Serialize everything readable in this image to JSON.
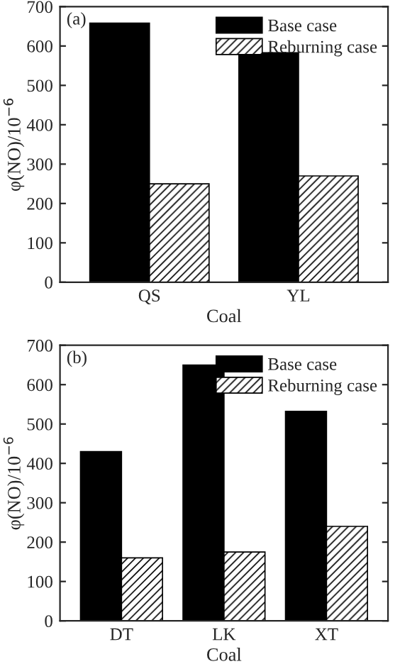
{
  "chart_data": [
    {
      "type": "bar",
      "categories": [
        "QS",
        "YL"
      ],
      "xlabel": "Coal",
      "ylabel": "φ(NO)/10$^{−6}$",
      "annotations": [
        "(a)"
      ],
      "ylim": [
        0,
        700
      ],
      "yticks": [
        0,
        100,
        200,
        300,
        400,
        500,
        600,
        700
      ],
      "legend": "top right",
      "series": [
        {
          "name": "Base case",
          "color": "#000000",
          "values": [
            658,
            583
          ]
        },
        {
          "name": "Reburning case",
          "color": "#000000",
          "values": [
            250,
            270
          ]
        }
      ]
    },
    {
      "type": "bar",
      "categories": [
        "DT",
        "LK",
        "XT"
      ],
      "xlabel": "Coal",
      "ylabel": "φ(NO)/10$^{−6}$",
      "annotations": [
        "(b)"
      ],
      "ylim": [
        0,
        700
      ],
      "yticks": [
        0,
        100,
        200,
        300,
        400,
        500,
        600,
        700
      ],
      "legend": "top right",
      "series": [
        {
          "name": "Base case",
          "color": "#000000",
          "values": [
            430,
            650,
            532
          ]
        },
        {
          "name": "Reburning case",
          "color": "#000000",
          "values": [
            160,
            175,
            240
          ]
        }
      ]
    }
  ]
}
